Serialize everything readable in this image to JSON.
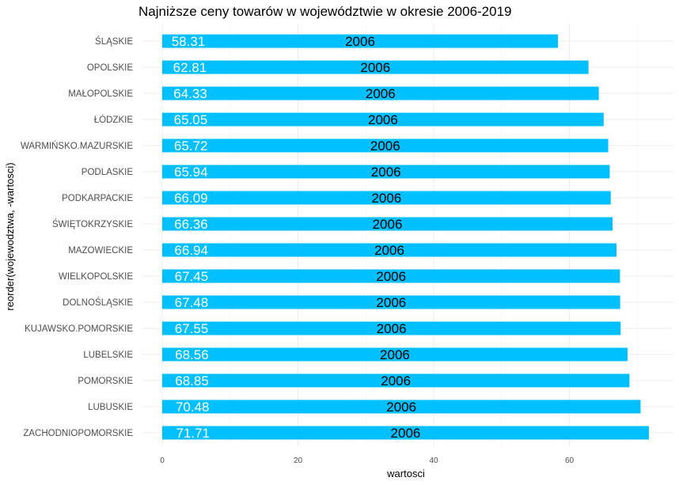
{
  "chart_data": {
    "type": "bar",
    "orientation": "horizontal",
    "title": "Najniższe ceny towarów w województwie w okresie 2006-2019",
    "xlabel": "wartosci",
    "ylabel": "reorder(wojewodztwa, -wartosci)",
    "xlim": [
      0,
      75
    ],
    "xticks": [
      0,
      20,
      40,
      60
    ],
    "bar_color": "#00BFFF",
    "grid": true,
    "categories": [
      "ŚLĄSKIE",
      "OPOLSKIE",
      "MAŁOPOLSKIE",
      "ŁÓDZKIE",
      "WARMIŃSKO.MAZURSKIE",
      "PODLASKIE",
      "PODKARPACKIE",
      "ŚWIĘTOKRZYSKIE",
      "MAZOWIECKIE",
      "WIELKOPOLSKIE",
      "DOLNOŚLĄSKIE",
      "KUJAWSKO.POMORSKIE",
      "LUBELSKIE",
      "POMORSKIE",
      "LUBUSKIE",
      "ZACHODNIOPOMORSKIE"
    ],
    "values": [
      58.31,
      62.81,
      64.33,
      65.05,
      65.72,
      65.94,
      66.09,
      66.36,
      66.94,
      67.45,
      67.48,
      67.55,
      68.56,
      68.85,
      70.48,
      71.71
    ],
    "value_labels": [
      "58.31",
      "62.81",
      "64.33",
      "65.05",
      "65.72",
      "65.94",
      "66.09",
      "66.36",
      "66.94",
      "67.45",
      "67.48",
      "67.55",
      "68.56",
      "68.85",
      "70.48",
      "71.71"
    ],
    "years": [
      "2006",
      "2006",
      "2006",
      "2006",
      "2006",
      "2006",
      "2006",
      "2006",
      "2006",
      "2006",
      "2006",
      "2006",
      "2006",
      "2006",
      "2006",
      "2006"
    ]
  }
}
